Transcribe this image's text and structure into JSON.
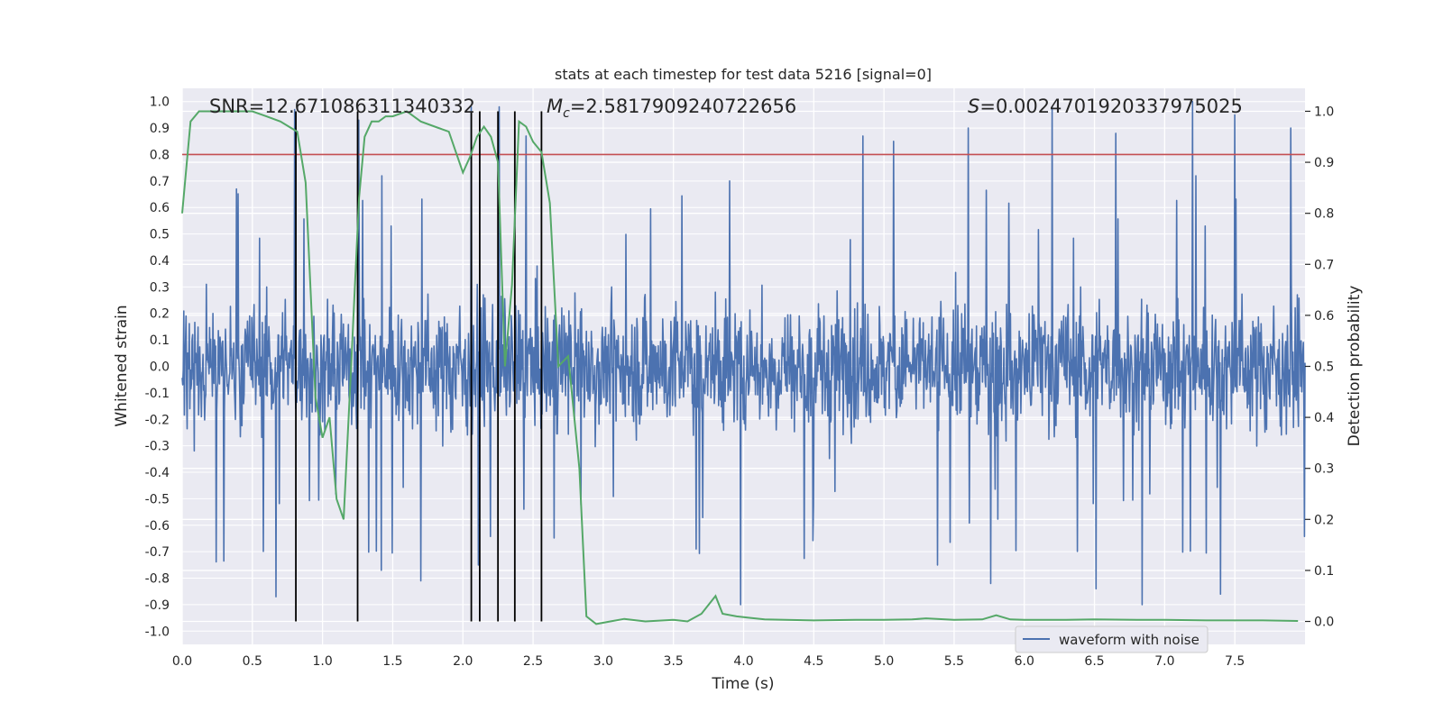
{
  "chart_data": {
    "type": "line",
    "title": "stats at each timestep for test data 5216 [signal=0]",
    "xlabel": "Time (s)",
    "ylabel_left": "Whitened strain",
    "ylabel_right": "Detection probability",
    "xlim": [
      0.0,
      8.0
    ],
    "ylim_left": [
      -1.05,
      1.05
    ],
    "ylim_right": [
      -0.045,
      1.045
    ],
    "x_ticks": [
      "0.0",
      "0.5",
      "1.0",
      "1.5",
      "2.0",
      "2.5",
      "3.0",
      "3.5",
      "4.0",
      "4.5",
      "5.0",
      "5.5",
      "6.0",
      "6.5",
      "7.0",
      "7.5"
    ],
    "y_left_ticks": [
      "1.0",
      "0.9",
      "0.8",
      "0.7",
      "0.6",
      "0.5",
      "0.4",
      "0.3",
      "0.2",
      "0.1",
      "0.0",
      "-0.1",
      "-0.2",
      "-0.3",
      "-0.4",
      "-0.5",
      "-0.6",
      "-0.7",
      "-0.8",
      "-0.9",
      "-1.0"
    ],
    "y_right_ticks": [
      "1.0",
      "0.9",
      "0.8",
      "0.7",
      "0.6",
      "0.5",
      "0.4",
      "0.3",
      "0.2",
      "0.1",
      "0.0"
    ],
    "grid": true,
    "legend": {
      "placement": "lower-right",
      "entries": [
        "waveform with noise"
      ]
    },
    "annotations": {
      "snr": "SNR=12.671086311340332",
      "mc_symbol": "M",
      "mc_sub": "c",
      "mc_value": "=2.5817909240722656",
      "s_symbol": "S",
      "s_value": "=0.0024701920337975025"
    },
    "threshold": {
      "y": 0.8,
      "axis": "left",
      "color": "#c44e52"
    },
    "vertical_markers_x": [
      0.81,
      1.25,
      2.06,
      2.12,
      2.25,
      2.37,
      2.56
    ],
    "waveform": {
      "name": "waveform with noise",
      "color": "#4c72b0",
      "samples": 2048,
      "envelope_left": 0.4,
      "peaks": [
        [
          0.8,
          0.97
        ],
        [
          1.26,
          0.93
        ],
        [
          2.06,
          0.98
        ],
        [
          2.26,
          0.98
        ],
        [
          2.45,
          0.87
        ],
        [
          6.2,
          0.98
        ],
        [
          7.2,
          1.0
        ],
        [
          7.5,
          0.95
        ],
        [
          5.6,
          0.9
        ],
        [
          4.85,
          0.87
        ],
        [
          6.65,
          0.88
        ],
        [
          7.9,
          0.9
        ],
        [
          3.9,
          0.7
        ],
        [
          5.07,
          0.85
        ]
      ],
      "troughs": [
        [
          0.67,
          -0.87
        ],
        [
          1.42,
          -0.77
        ],
        [
          1.7,
          -0.81
        ],
        [
          2.11,
          -0.75
        ],
        [
          3.98,
          -0.9
        ],
        [
          5.38,
          -0.75
        ],
        [
          5.76,
          -0.82
        ],
        [
          6.51,
          -0.84
        ],
        [
          6.84,
          -0.9
        ],
        [
          7.4,
          -0.86
        ]
      ]
    },
    "probability": {
      "name": "detection probability",
      "color": "#55a868",
      "x": [
        0.0,
        0.06,
        0.12,
        0.2,
        0.3,
        0.4,
        0.5,
        0.6,
        0.7,
        0.76,
        0.82,
        0.88,
        0.95,
        1.0,
        1.05,
        1.1,
        1.15,
        1.2,
        1.26,
        1.3,
        1.35,
        1.4,
        1.45,
        1.5,
        1.6,
        1.7,
        1.8,
        1.9,
        1.95,
        2.0,
        2.05,
        2.1,
        2.15,
        2.2,
        2.25,
        2.3,
        2.35,
        2.4,
        2.45,
        2.5,
        2.56,
        2.62,
        2.68,
        2.75,
        2.83,
        2.88,
        2.95,
        3.05,
        3.15,
        3.3,
        3.5,
        3.6,
        3.7,
        3.8,
        3.85,
        3.95,
        4.05,
        4.15,
        4.3,
        4.5,
        4.8,
        5.0,
        5.2,
        5.3,
        5.5,
        5.7,
        5.8,
        5.9,
        6.0,
        6.3,
        6.5,
        6.8,
        7.0,
        7.3,
        7.5,
        7.7,
        7.95
      ],
      "y": [
        0.8,
        0.98,
        1.0,
        1.0,
        1.0,
        1.0,
        1.0,
        0.99,
        0.98,
        0.97,
        0.96,
        0.86,
        0.44,
        0.36,
        0.4,
        0.24,
        0.2,
        0.48,
        0.83,
        0.95,
        0.98,
        0.98,
        0.99,
        0.99,
        1.0,
        0.98,
        0.97,
        0.96,
        0.92,
        0.88,
        0.91,
        0.95,
        0.97,
        0.95,
        0.9,
        0.5,
        0.66,
        0.98,
        0.97,
        0.94,
        0.92,
        0.82,
        0.5,
        0.52,
        0.3,
        0.01,
        -0.005,
        0.0,
        0.005,
        0.0,
        0.003,
        0.0,
        0.015,
        0.05,
        0.015,
        0.01,
        0.007,
        0.004,
        0.003,
        0.002,
        0.003,
        0.003,
        0.004,
        0.006,
        0.003,
        0.004,
        0.012,
        0.004,
        0.003,
        0.003,
        0.004,
        0.003,
        0.003,
        0.002,
        0.002,
        0.002,
        0.001
      ]
    }
  }
}
